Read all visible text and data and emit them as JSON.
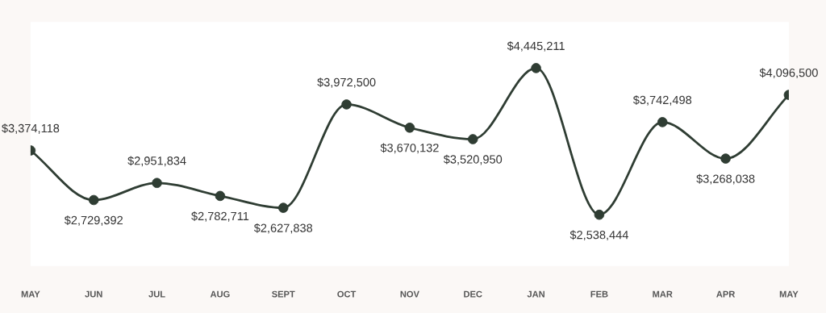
{
  "chart_data": {
    "type": "line",
    "categories": [
      "MAY",
      "JUN",
      "JUL",
      "AUG",
      "SEPT",
      "OCT",
      "NOV",
      "DEC",
      "JAN",
      "FEB",
      "MAR",
      "APR",
      "MAY"
    ],
    "series": [
      {
        "color": "#2f3d33",
        "values": [
          3374118,
          2729392,
          2951834,
          2782711,
          2627838,
          3972500,
          3670132,
          3520950,
          4445211,
          2538444,
          3742498,
          3268038,
          4096500
        ],
        "value_labels": [
          "$3,374,118",
          "$2,729,392",
          "$2,951,834",
          "$2,782,711",
          "$2,627,838",
          "$3,972,500",
          "$3,670,132",
          "$3,520,950",
          "$4,445,211",
          "$2,538,444",
          "$3,742,498",
          "$3,268,038",
          "$4,096,500"
        ]
      }
    ],
    "marker": "circle",
    "grid": false,
    "legend": false,
    "tick_labels": "x"
  }
}
